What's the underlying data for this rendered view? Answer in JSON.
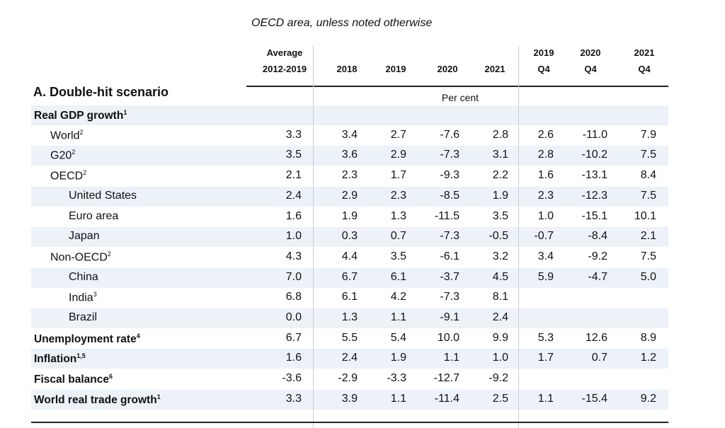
{
  "caption": "OECD area, unless noted otherwise",
  "section_title": "A. Double-hit scenario",
  "unit_label": "Per cent",
  "headers": [
    {
      "line1": "Average",
      "line2": "2012-2019"
    },
    {
      "line1": "",
      "line2": "2018"
    },
    {
      "line1": "",
      "line2": "2019"
    },
    {
      "line1": "",
      "line2": "2020"
    },
    {
      "line1": "",
      "line2": "2021"
    },
    {
      "line1": "2019",
      "line2": "Q4"
    },
    {
      "line1": "2020",
      "line2": "Q4"
    },
    {
      "line1": "2021",
      "line2": "Q4"
    }
  ],
  "rows": [
    {
      "label": "Real GDP growth",
      "sup": "1",
      "indent": 0,
      "bold": true,
      "values": [
        "",
        "",
        "",
        "",
        "",
        "",
        "",
        ""
      ]
    },
    {
      "label": "World",
      "sup": "2",
      "indent": 1,
      "bold": false,
      "values": [
        "3.3",
        "3.4",
        "2.7",
        "-7.6",
        "2.8",
        "2.6",
        "-11.0",
        "7.9"
      ]
    },
    {
      "label": "G20",
      "sup": "2",
      "indent": 1,
      "bold": false,
      "values": [
        "3.5",
        "3.6",
        "2.9",
        "-7.3",
        "3.1",
        "2.8",
        "-10.2",
        "7.5"
      ]
    },
    {
      "label": "OECD",
      "sup": "2",
      "indent": 1,
      "bold": false,
      "values": [
        "2.1",
        "2.3",
        "1.7",
        "-9.3",
        "2.2",
        "1.6",
        "-13.1",
        "8.4"
      ]
    },
    {
      "label": "United States",
      "sup": "",
      "indent": 2,
      "bold": false,
      "values": [
        "2.4",
        "2.9",
        "2.3",
        "-8.5",
        "1.9",
        "2.3",
        "-12.3",
        "7.5"
      ]
    },
    {
      "label": "Euro area",
      "sup": "",
      "indent": 2,
      "bold": false,
      "values": [
        "1.6",
        "1.9",
        "1.3",
        "-11.5",
        "3.5",
        "1.0",
        "-15.1",
        "10.1"
      ]
    },
    {
      "label": "Japan",
      "sup": "",
      "indent": 2,
      "bold": false,
      "values": [
        "1.0",
        "0.3",
        "0.7",
        "-7.3",
        "-0.5",
        "-0.7",
        "-8.4",
        "2.1"
      ]
    },
    {
      "label": "Non-OECD",
      "sup": "2",
      "indent": 1,
      "bold": false,
      "values": [
        "4.3",
        "4.4",
        "3.5",
        "-6.1",
        "3.2",
        "3.4",
        "-9.2",
        "7.5"
      ]
    },
    {
      "label": "China",
      "sup": "",
      "indent": 2,
      "bold": false,
      "values": [
        "7.0",
        "6.7",
        "6.1",
        "-3.7",
        "4.5",
        "5.9",
        "-4.7",
        "5.0"
      ]
    },
    {
      "label": "India",
      "sup": "3",
      "indent": 2,
      "bold": false,
      "values": [
        "6.8",
        "6.1",
        "4.2",
        "-7.3",
        "8.1",
        "",
        "",
        ""
      ]
    },
    {
      "label": "Brazil",
      "sup": "",
      "indent": 2,
      "bold": false,
      "values": [
        "0.0",
        "1.3",
        "1.1",
        "-9.1",
        "2.4",
        "",
        "",
        ""
      ]
    },
    {
      "label": "Unemployment rate",
      "sup": "4",
      "indent": 0,
      "bold": true,
      "values": [
        "6.7",
        "5.5",
        "5.4",
        "10.0",
        "9.9",
        "5.3",
        "12.6",
        "8.9"
      ]
    },
    {
      "label": "Inflation",
      "sup": "1,5",
      "indent": 0,
      "bold": true,
      "values": [
        "1.6",
        "2.4",
        "1.9",
        "1.1",
        "1.0",
        "1.7",
        "0.7",
        "1.2"
      ]
    },
    {
      "label": "Fiscal balance",
      "sup": "6",
      "indent": 0,
      "bold": true,
      "values": [
        "-3.6",
        "-2.9",
        "-3.3",
        "-12.7",
        "-9.2",
        "",
        "",
        ""
      ]
    },
    {
      "label": "World real trade growth",
      "sup": "1",
      "indent": 0,
      "bold": true,
      "values": [
        "3.3",
        "3.9",
        "1.1",
        "-11.4",
        "2.5",
        "1.1",
        "-15.4",
        "9.2"
      ]
    }
  ]
}
